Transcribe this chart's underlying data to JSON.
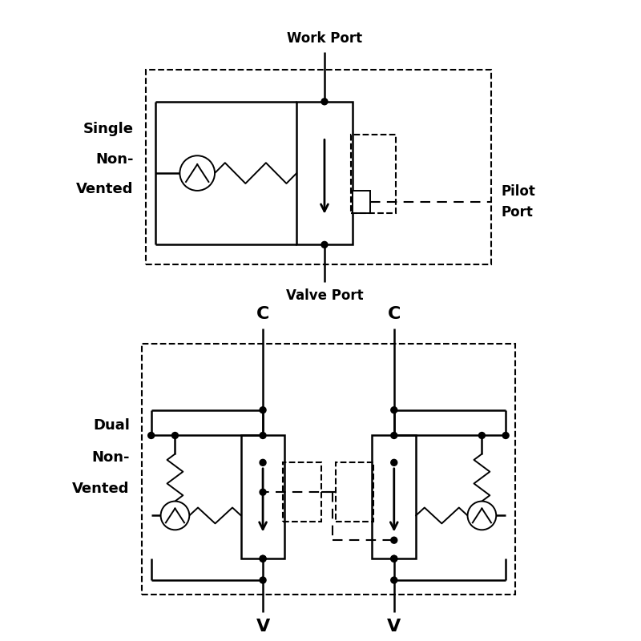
{
  "bg_color": "#ffffff",
  "lc": "#000000",
  "lw": 1.8,
  "lw_d": 1.5,
  "lw_thin": 1.4,
  "dot_r": 0.04,
  "fig_w": 8.0,
  "fig_h": 8.0,
  "label_single": [
    "Single",
    "Non-",
    "Vented"
  ],
  "label_dual": [
    "Dual",
    "Non-",
    "Vented"
  ],
  "label_work_port": "Work Port",
  "label_valve_port": "Valve Port",
  "label_pilot_port": [
    "Pilot",
    "Port"
  ],
  "label_C1": "C",
  "label_C2": "C",
  "label_V1": "V",
  "label_V2": "V",
  "fontsize_label": 13,
  "fontsize_port": 12,
  "fontsize_cv": 16
}
